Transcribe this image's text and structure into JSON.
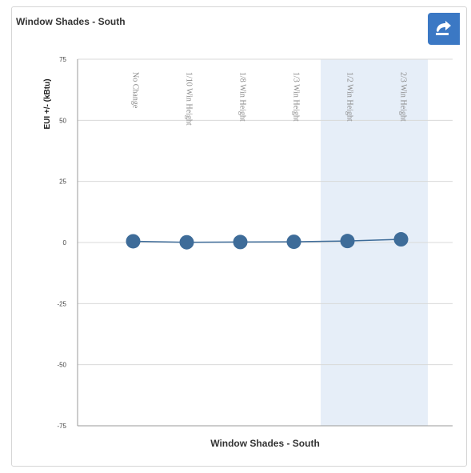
{
  "card": {
    "title": "Window Shades - South",
    "export_icon": "export-icon"
  },
  "colors": {
    "series": "#3e6c99",
    "band": "#e6eef8",
    "grid": "#d9d9d9",
    "button": "#3b78c4"
  },
  "chart_data": {
    "type": "line",
    "title": "",
    "xlabel": "Window Shades - South",
    "ylabel": "EUI +/- (kBtu)",
    "ylim": [
      -75,
      75
    ],
    "yticks": [
      75,
      50,
      25,
      0,
      -25,
      -50,
      -75
    ],
    "categories": [
      "No Change",
      "1/10 Win Height",
      "1/8 Win Height",
      "1/3 Win Height",
      "1/2 Win Height",
      "2/3 Win Height"
    ],
    "series": [
      {
        "name": "",
        "values": [
          0.5,
          0.1,
          0.2,
          0.3,
          0.6,
          1.3
        ]
      }
    ],
    "highlight_categories": [
      "1/2 Win Height",
      "2/3 Win Height"
    ],
    "grid": true,
    "legend": "none"
  }
}
